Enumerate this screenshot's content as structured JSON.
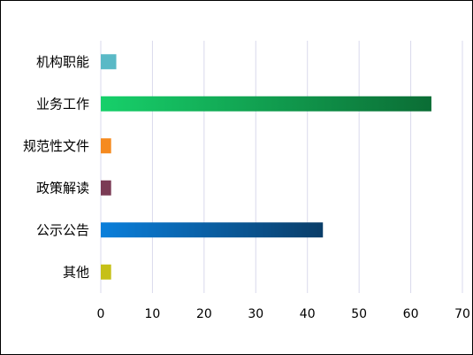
{
  "chart_data": {
    "type": "bar",
    "orientation": "horizontal",
    "categories": [
      "机构职能",
      "业务工作",
      "规范性文件",
      "政策解读",
      "公示公告",
      "其他"
    ],
    "values": [
      3,
      64,
      2,
      2,
      43,
      2
    ],
    "bar_colors": [
      [
        "#5ab9c6",
        "#5ab9c6"
      ],
      [
        "#17d06a",
        "#0b6d35"
      ],
      [
        "#f58a1f",
        "#f58a1f"
      ],
      [
        "#7b3b55",
        "#7b3b55"
      ],
      [
        "#0a7fdb",
        "#0a3d68"
      ],
      [
        "#c6c018",
        "#c6c018"
      ]
    ],
    "xlim": [
      0,
      70
    ],
    "x_ticks": [
      "0",
      "10",
      "20",
      "30",
      "40",
      "50",
      "60",
      "70"
    ],
    "grid": true,
    "grid_color": "#d9d9ec",
    "title": "",
    "xlabel": "",
    "ylabel": ""
  }
}
